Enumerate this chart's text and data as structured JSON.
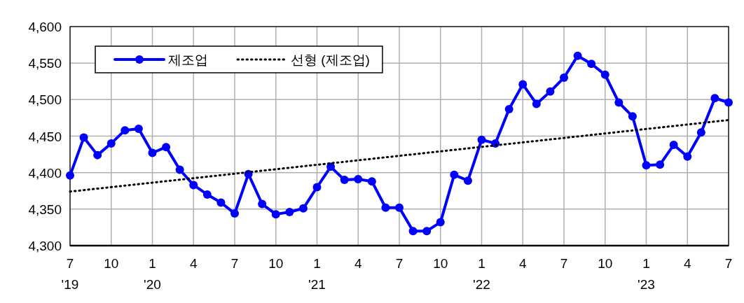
{
  "chart_data": {
    "type": "line",
    "xlim": [
      "2019-07",
      "2023-07"
    ],
    "ylim": [
      4300,
      4600
    ],
    "x": [
      "2019-07",
      "2019-08",
      "2019-09",
      "2019-10",
      "2019-11",
      "2019-12",
      "2020-01",
      "2020-02",
      "2020-03",
      "2020-04",
      "2020-05",
      "2020-06",
      "2020-07",
      "2020-08",
      "2020-09",
      "2020-10",
      "2020-11",
      "2020-12",
      "2021-01",
      "2021-02",
      "2021-03",
      "2021-04",
      "2021-05",
      "2021-06",
      "2021-07",
      "2021-08",
      "2021-09",
      "2021-10",
      "2021-11",
      "2021-12",
      "2022-01",
      "2022-02",
      "2022-03",
      "2022-04",
      "2022-05",
      "2022-06",
      "2022-07",
      "2022-08",
      "2022-09",
      "2022-10",
      "2022-11",
      "2022-12",
      "2023-01",
      "2023-02",
      "2023-03",
      "2023-04",
      "2023-05",
      "2023-06",
      "2023-07"
    ],
    "series": [
      {
        "name": "제조업",
        "color": "#0000ff",
        "marker": "circle",
        "line_style": "solid",
        "values": [
          4396,
          4448,
          4424,
          4440,
          4458,
          4460,
          4427,
          4435,
          4404,
          4383,
          4370,
          4359,
          4344,
          4398,
          4357,
          4343,
          4346,
          4351,
          4380,
          4408,
          4390,
          4391,
          4388,
          4352,
          4352,
          4320,
          4320,
          4332,
          4397,
          4389,
          4445,
          4440,
          4487,
          4521,
          4494,
          4511,
          4530,
          4560,
          4549,
          4534,
          4496,
          4477,
          4410,
          4411,
          4438,
          4422,
          4455,
          4502,
          4496
        ]
      },
      {
        "name": "선형 (제조업)",
        "type": "line",
        "color": "#000000",
        "marker": "none",
        "line_style": "dotted",
        "x": [
          "2019-07",
          "2023-07"
        ],
        "values": [
          4374,
          4472
        ]
      }
    ],
    "xticks": [
      {
        "value": "2019-07",
        "label": "7\n'19"
      },
      {
        "value": "2019-10",
        "label": "10"
      },
      {
        "value": "2020-01",
        "label": "1\n'20"
      },
      {
        "value": "2020-04",
        "label": "4"
      },
      {
        "value": "2020-07",
        "label": "7"
      },
      {
        "value": "2020-10",
        "label": "10"
      },
      {
        "value": "2021-01",
        "label": "1\n'21"
      },
      {
        "value": "2021-04",
        "label": "4"
      },
      {
        "value": "2021-07",
        "label": "7"
      },
      {
        "value": "2021-10",
        "label": "10"
      },
      {
        "value": "2022-01",
        "label": "1\n'22"
      },
      {
        "value": "2022-04",
        "label": "4"
      },
      {
        "value": "2022-07",
        "label": "7"
      },
      {
        "value": "2022-10",
        "label": "10"
      },
      {
        "value": "2023-01",
        "label": "1\n'23"
      },
      {
        "value": "2023-04",
        "label": "4"
      },
      {
        "value": "2023-07",
        "label": "7"
      }
    ],
    "yticks": [
      {
        "value": 4300,
        "label": "4,300"
      },
      {
        "value": 4350,
        "label": "4,350"
      },
      {
        "value": 4400,
        "label": "4,400"
      },
      {
        "value": 4450,
        "label": "4,450"
      },
      {
        "value": 4500,
        "label": "4,500"
      },
      {
        "value": 4550,
        "label": "4,550"
      },
      {
        "value": 4600,
        "label": "4,600"
      }
    ],
    "grid": true,
    "legend": "top left"
  }
}
